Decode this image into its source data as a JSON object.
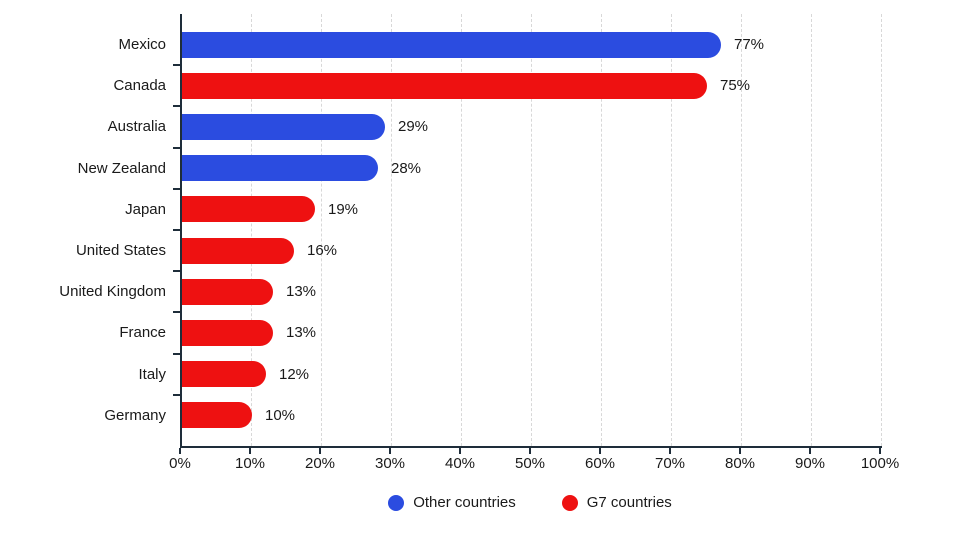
{
  "chart_data": {
    "type": "bar",
    "orientation": "horizontal",
    "title": "",
    "xlabel": "",
    "ylabel": "",
    "categories": [
      "Mexico",
      "Canada",
      "Australia",
      "New Zealand",
      "Japan",
      "United States",
      "United Kingdom",
      "France",
      "Italy",
      "Germany"
    ],
    "values": [
      77,
      75,
      29,
      28,
      19,
      16,
      13,
      13,
      12,
      10
    ],
    "value_labels": [
      "77%",
      "75%",
      "29%",
      "28%",
      "19%",
      "16%",
      "13%",
      "13%",
      "12%",
      "10%"
    ],
    "groups": [
      "other",
      "g7",
      "other",
      "other",
      "g7",
      "g7",
      "g7",
      "g7",
      "g7",
      "g7"
    ],
    "xlim": [
      0,
      100
    ],
    "x_tick_labels": [
      "0%",
      "10%",
      "20%",
      "30%",
      "40%",
      "50%",
      "60%",
      "70%",
      "80%",
      "90%",
      "100%"
    ],
    "grid": "vertical-dashed",
    "legend": {
      "position": "bottom-center",
      "entries": [
        {
          "key": "other",
          "label": "Other countries",
          "color": "#2b4ce0"
        },
        {
          "key": "g7",
          "label": "G7 countries",
          "color": "#ee1111"
        }
      ]
    },
    "colors": {
      "other": "#2b4ce0",
      "g7": "#ee1111",
      "axis": "#1e2d3a",
      "grid": "#d8d8d8",
      "text": "#1a1a1a",
      "background": "#ffffff"
    }
  }
}
